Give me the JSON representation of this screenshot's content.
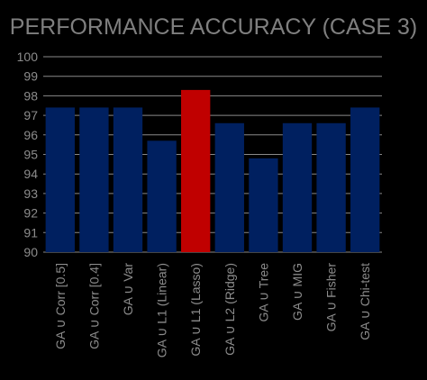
{
  "chart_data": {
    "type": "bar",
    "title": "PERFORMANCE ACCURACY (CASE 3)",
    "xlabel": "",
    "ylabel": "",
    "ylim": [
      90,
      100
    ],
    "ytick_step": 1,
    "grid": true,
    "categories": [
      "GA ∪ Corr [0.5]",
      "GA ∪ Corr [0.4]",
      "GA ∪ Var",
      "GA ∪ L1 (Linear)",
      "GA ∪ L1 (Lasso)",
      "GA ∪ L2 (Ridge)",
      "GA ∪ Tree",
      "GA ∪ MIG",
      "GA ∪ Fisher",
      "GA ∪ Chi-test"
    ],
    "series": [
      {
        "values": [
          97.4,
          97.4,
          97.4,
          95.7,
          98.3,
          96.6,
          94.8,
          96.6,
          96.6,
          97.4
        ]
      }
    ],
    "colors": {
      "background": "#000000",
      "bar_default": "#002060",
      "bar_highlight": "#c00000",
      "grid": "#8a8a8a",
      "text": "#8c8c8c",
      "title": "#7f7f7f"
    },
    "highlight_index": 4
  }
}
